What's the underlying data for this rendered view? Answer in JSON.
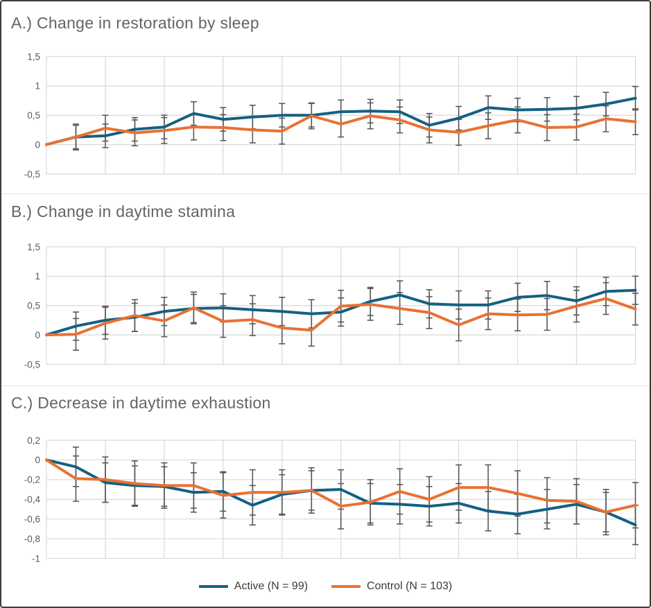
{
  "figure": {
    "background": "#ffffff",
    "border_color": "#3d3d3d",
    "separator_color": "#e4e4e4",
    "grid_color": "#d9d9d9",
    "error_bar_color": "#595959",
    "title_color": "#646464",
    "tick_label_color": "#595959",
    "legend_text_color": "#3a3a3a",
    "accent_blue": "#156082",
    "accent_orange": "#E97132"
  },
  "chart_data": [
    {
      "type": "line",
      "panel_label": "a",
      "title": "A.) Change in restoration by sleep",
      "x": [
        0,
        1,
        2,
        3,
        4,
        5,
        6,
        7,
        8,
        9,
        10,
        11,
        12,
        13,
        14,
        15,
        16,
        17,
        18,
        19,
        20
      ],
      "x_tick_labels_visible": false,
      "grid": true,
      "legend_position": "none",
      "ylim": [
        -0.5,
        1.5
      ],
      "yticks": [
        {
          "value": 1.5,
          "label": "1,5"
        },
        {
          "value": 1.0,
          "label": "1"
        },
        {
          "value": 0.5,
          "label": "0,5"
        },
        {
          "value": 0.0,
          "label": "0"
        },
        {
          "value": -0.5,
          "label": "-0,5"
        }
      ],
      "series": [
        {
          "name": "Active (N = 99)",
          "color": "#156082",
          "values": [
            0,
            0.13,
            0.15,
            0.26,
            0.3,
            0.53,
            0.43,
            0.47,
            0.5,
            0.5,
            0.56,
            0.57,
            0.56,
            0.33,
            0.45,
            0.63,
            0.59,
            0.6,
            0.62,
            0.69,
            0.79
          ],
          "error_half_width": 0.2
        },
        {
          "name": "Control (N = 103)",
          "color": "#E97132",
          "values": [
            0,
            0.13,
            0.28,
            0.2,
            0.24,
            0.3,
            0.29,
            0.25,
            0.23,
            0.49,
            0.35,
            0.49,
            0.42,
            0.25,
            0.21,
            0.32,
            0.42,
            0.29,
            0.3,
            0.44,
            0.39
          ],
          "error_half_width": 0.22
        }
      ]
    },
    {
      "type": "line",
      "panel_label": "b",
      "title": "B.) Change in daytime stamina",
      "x": [
        0,
        1,
        2,
        3,
        4,
        5,
        6,
        7,
        8,
        9,
        10,
        11,
        12,
        13,
        14,
        15,
        16,
        17,
        18,
        19,
        20
      ],
      "x_tick_labels_visible": false,
      "grid": true,
      "legend_position": "none",
      "ylim": [
        -0.5,
        1.5
      ],
      "yticks": [
        {
          "value": 1.5,
          "label": "1,5"
        },
        {
          "value": 1.0,
          "label": "1"
        },
        {
          "value": 0.5,
          "label": "0,5"
        },
        {
          "value": 0.0,
          "label": "0"
        },
        {
          "value": -0.5,
          "label": "-0,5"
        }
      ],
      "series": [
        {
          "name": "Active (N = 99)",
          "color": "#156082",
          "values": [
            0,
            0.15,
            0.25,
            0.3,
            0.4,
            0.45,
            0.46,
            0.43,
            0.4,
            0.36,
            0.39,
            0.57,
            0.68,
            0.53,
            0.51,
            0.51,
            0.64,
            0.67,
            0.58,
            0.74,
            0.76
          ],
          "error_half_width": 0.24
        },
        {
          "name": "Control (N = 103)",
          "color": "#E97132",
          "values": [
            0,
            0.01,
            0.2,
            0.33,
            0.24,
            0.46,
            0.23,
            0.26,
            0.12,
            0.08,
            0.49,
            0.52,
            0.45,
            0.38,
            0.17,
            0.36,
            0.34,
            0.35,
            0.49,
            0.62,
            0.44
          ],
          "error_half_width": 0.27
        }
      ]
    },
    {
      "type": "line",
      "panel_label": "c",
      "title": "C.) Decrease in daytime exhaustion",
      "x": [
        0,
        1,
        2,
        3,
        4,
        5,
        6,
        7,
        8,
        9,
        10,
        11,
        12,
        13,
        14,
        15,
        16,
        17,
        18,
        19,
        20
      ],
      "x_tick_labels_visible": false,
      "grid": true,
      "legend_position": "none",
      "ylim": [
        -1.0,
        0.2
      ],
      "yticks": [
        {
          "value": 0.2,
          "label": "0,2"
        },
        {
          "value": 0.0,
          "label": "0"
        },
        {
          "value": -0.2,
          "label": "-0,2"
        },
        {
          "value": -0.4,
          "label": "-0,4"
        },
        {
          "value": -0.6,
          "label": "-0,6"
        },
        {
          "value": -0.8,
          "label": "-0,8"
        },
        {
          "value": -1.0,
          "label": "-1"
        }
      ],
      "series": [
        {
          "name": "Active (N = 99)",
          "color": "#156082",
          "values": [
            0,
            -0.07,
            -0.23,
            -0.26,
            -0.27,
            -0.33,
            -0.32,
            -0.46,
            -0.35,
            -0.31,
            -0.3,
            -0.44,
            -0.45,
            -0.47,
            -0.44,
            -0.52,
            -0.55,
            -0.5,
            -0.45,
            -0.53,
            -0.66
          ],
          "error_half_width": 0.2
        },
        {
          "name": "Control (N = 103)",
          "color": "#E97132",
          "values": [
            0,
            -0.19,
            -0.2,
            -0.24,
            -0.26,
            -0.26,
            -0.36,
            -0.33,
            -0.33,
            -0.31,
            -0.47,
            -0.43,
            -0.32,
            -0.4,
            -0.28,
            -0.28,
            -0.34,
            -0.41,
            -0.42,
            -0.53,
            -0.46
          ],
          "error_half_width": 0.23
        }
      ]
    }
  ],
  "legend": {
    "items": [
      {
        "label": "Active (N = 99)",
        "swatch_color": "#156082"
      },
      {
        "label": "Control (N = 103)",
        "swatch_color": "#E97132"
      }
    ]
  }
}
